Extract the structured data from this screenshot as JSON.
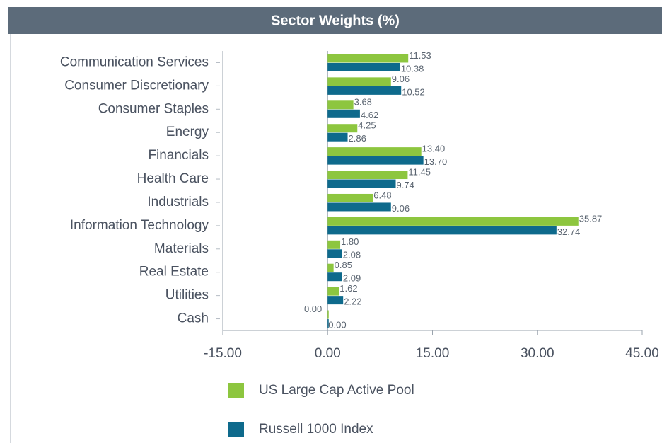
{
  "chart_data": {
    "type": "hbar",
    "title": "Sector Weights (%)",
    "categories": [
      "Communication Services",
      "Consumer Discretionary",
      "Consumer Staples",
      "Energy",
      "Financials",
      "Health Care",
      "Industrials",
      "Information Technology",
      "Materials",
      "Real Estate",
      "Utilities",
      "Cash"
    ],
    "series": [
      {
        "name": "US Large Cap Active Pool",
        "color": "#8dc63f",
        "values": [
          11.53,
          9.06,
          3.68,
          4.25,
          13.4,
          11.45,
          6.48,
          35.87,
          1.8,
          0.85,
          1.62,
          0
        ],
        "value_labels": [
          "11.53",
          "9.06",
          "3.68",
          "4.25",
          "13.40",
          "11.45",
          "6.48",
          "35.87",
          "1.80",
          "0.85",
          "1.62",
          "0.00"
        ]
      },
      {
        "name": "Russell 1000 Index",
        "color": "#0e6a8c",
        "values": [
          10.38,
          10.52,
          4.62,
          2.86,
          13.7,
          9.74,
          9.06,
          32.74,
          2.08,
          2.09,
          2.22,
          0
        ],
        "value_labels": [
          "10.38",
          "10.52",
          "4.62",
          "2.86",
          "13.70",
          "9.74",
          "9.06",
          "32.74",
          "2.08",
          "2.09",
          "2.22",
          "0.00"
        ]
      }
    ],
    "xlim": [
      -15,
      45
    ],
    "xticks": [
      {
        "value": -15,
        "label": "-15.00"
      },
      {
        "value": 0,
        "label": "0.00"
      },
      {
        "value": 15,
        "label": "15.00"
      },
      {
        "value": 30,
        "label": "30.00"
      },
      {
        "value": 45,
        "label": "45.00"
      }
    ]
  }
}
